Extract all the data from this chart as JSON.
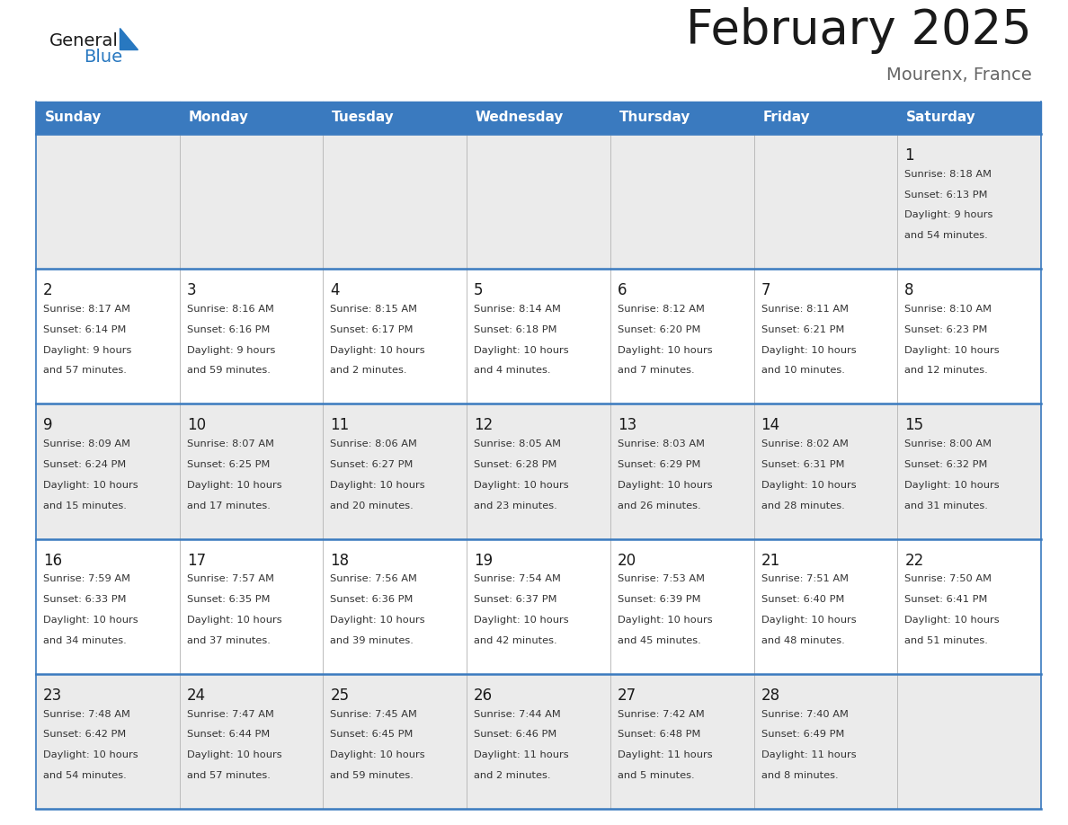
{
  "title": "February 2025",
  "subtitle": "Mourenx, France",
  "header_color": "#3a7abf",
  "header_text_color": "#ffffff",
  "cell_bg_gray": "#ebebeb",
  "cell_bg_white": "#ffffff",
  "title_color": "#1a1a1a",
  "subtitle_color": "#666666",
  "day_num_color": "#1a1a1a",
  "cell_text_color": "#333333",
  "border_color": "#3a7abf",
  "grid_line_color": "#aaaaaa",
  "days_of_week": [
    "Sunday",
    "Monday",
    "Tuesday",
    "Wednesday",
    "Thursday",
    "Friday",
    "Saturday"
  ],
  "logo_text1": "General",
  "logo_text2": "Blue",
  "logo_color1": "#1a1a1a",
  "logo_color2": "#2878c0",
  "logo_triangle_color": "#2878c0",
  "calendar_data": [
    [
      {
        "day": "",
        "sunrise": "",
        "sunset": "",
        "daylight": ""
      },
      {
        "day": "",
        "sunrise": "",
        "sunset": "",
        "daylight": ""
      },
      {
        "day": "",
        "sunrise": "",
        "sunset": "",
        "daylight": ""
      },
      {
        "day": "",
        "sunrise": "",
        "sunset": "",
        "daylight": ""
      },
      {
        "day": "",
        "sunrise": "",
        "sunset": "",
        "daylight": ""
      },
      {
        "day": "",
        "sunrise": "",
        "sunset": "",
        "daylight": ""
      },
      {
        "day": "1",
        "sunrise": "8:18 AM",
        "sunset": "6:13 PM",
        "daylight_line1": "Daylight: 9 hours",
        "daylight_line2": "and 54 minutes."
      }
    ],
    [
      {
        "day": "2",
        "sunrise": "8:17 AM",
        "sunset": "6:14 PM",
        "daylight_line1": "Daylight: 9 hours",
        "daylight_line2": "and 57 minutes."
      },
      {
        "day": "3",
        "sunrise": "8:16 AM",
        "sunset": "6:16 PM",
        "daylight_line1": "Daylight: 9 hours",
        "daylight_line2": "and 59 minutes."
      },
      {
        "day": "4",
        "sunrise": "8:15 AM",
        "sunset": "6:17 PM",
        "daylight_line1": "Daylight: 10 hours",
        "daylight_line2": "and 2 minutes."
      },
      {
        "day": "5",
        "sunrise": "8:14 AM",
        "sunset": "6:18 PM",
        "daylight_line1": "Daylight: 10 hours",
        "daylight_line2": "and 4 minutes."
      },
      {
        "day": "6",
        "sunrise": "8:12 AM",
        "sunset": "6:20 PM",
        "daylight_line1": "Daylight: 10 hours",
        "daylight_line2": "and 7 minutes."
      },
      {
        "day": "7",
        "sunrise": "8:11 AM",
        "sunset": "6:21 PM",
        "daylight_line1": "Daylight: 10 hours",
        "daylight_line2": "and 10 minutes."
      },
      {
        "day": "8",
        "sunrise": "8:10 AM",
        "sunset": "6:23 PM",
        "daylight_line1": "Daylight: 10 hours",
        "daylight_line2": "and 12 minutes."
      }
    ],
    [
      {
        "day": "9",
        "sunrise": "8:09 AM",
        "sunset": "6:24 PM",
        "daylight_line1": "Daylight: 10 hours",
        "daylight_line2": "and 15 minutes."
      },
      {
        "day": "10",
        "sunrise": "8:07 AM",
        "sunset": "6:25 PM",
        "daylight_line1": "Daylight: 10 hours",
        "daylight_line2": "and 17 minutes."
      },
      {
        "day": "11",
        "sunrise": "8:06 AM",
        "sunset": "6:27 PM",
        "daylight_line1": "Daylight: 10 hours",
        "daylight_line2": "and 20 minutes."
      },
      {
        "day": "12",
        "sunrise": "8:05 AM",
        "sunset": "6:28 PM",
        "daylight_line1": "Daylight: 10 hours",
        "daylight_line2": "and 23 minutes."
      },
      {
        "day": "13",
        "sunrise": "8:03 AM",
        "sunset": "6:29 PM",
        "daylight_line1": "Daylight: 10 hours",
        "daylight_line2": "and 26 minutes."
      },
      {
        "day": "14",
        "sunrise": "8:02 AM",
        "sunset": "6:31 PM",
        "daylight_line1": "Daylight: 10 hours",
        "daylight_line2": "and 28 minutes."
      },
      {
        "day": "15",
        "sunrise": "8:00 AM",
        "sunset": "6:32 PM",
        "daylight_line1": "Daylight: 10 hours",
        "daylight_line2": "and 31 minutes."
      }
    ],
    [
      {
        "day": "16",
        "sunrise": "7:59 AM",
        "sunset": "6:33 PM",
        "daylight_line1": "Daylight: 10 hours",
        "daylight_line2": "and 34 minutes."
      },
      {
        "day": "17",
        "sunrise": "7:57 AM",
        "sunset": "6:35 PM",
        "daylight_line1": "Daylight: 10 hours",
        "daylight_line2": "and 37 minutes."
      },
      {
        "day": "18",
        "sunrise": "7:56 AM",
        "sunset": "6:36 PM",
        "daylight_line1": "Daylight: 10 hours",
        "daylight_line2": "and 39 minutes."
      },
      {
        "day": "19",
        "sunrise": "7:54 AM",
        "sunset": "6:37 PM",
        "daylight_line1": "Daylight: 10 hours",
        "daylight_line2": "and 42 minutes."
      },
      {
        "day": "20",
        "sunrise": "7:53 AM",
        "sunset": "6:39 PM",
        "daylight_line1": "Daylight: 10 hours",
        "daylight_line2": "and 45 minutes."
      },
      {
        "day": "21",
        "sunrise": "7:51 AM",
        "sunset": "6:40 PM",
        "daylight_line1": "Daylight: 10 hours",
        "daylight_line2": "and 48 minutes."
      },
      {
        "day": "22",
        "sunrise": "7:50 AM",
        "sunset": "6:41 PM",
        "daylight_line1": "Daylight: 10 hours",
        "daylight_line2": "and 51 minutes."
      }
    ],
    [
      {
        "day": "23",
        "sunrise": "7:48 AM",
        "sunset": "6:42 PM",
        "daylight_line1": "Daylight: 10 hours",
        "daylight_line2": "and 54 minutes."
      },
      {
        "day": "24",
        "sunrise": "7:47 AM",
        "sunset": "6:44 PM",
        "daylight_line1": "Daylight: 10 hours",
        "daylight_line2": "and 57 minutes."
      },
      {
        "day": "25",
        "sunrise": "7:45 AM",
        "sunset": "6:45 PM",
        "daylight_line1": "Daylight: 10 hours",
        "daylight_line2": "and 59 minutes."
      },
      {
        "day": "26",
        "sunrise": "7:44 AM",
        "sunset": "6:46 PM",
        "daylight_line1": "Daylight: 11 hours",
        "daylight_line2": "and 2 minutes."
      },
      {
        "day": "27",
        "sunrise": "7:42 AM",
        "sunset": "6:48 PM",
        "daylight_line1": "Daylight: 11 hours",
        "daylight_line2": "and 5 minutes."
      },
      {
        "day": "28",
        "sunrise": "7:40 AM",
        "sunset": "6:49 PM",
        "daylight_line1": "Daylight: 11 hours",
        "daylight_line2": "and 8 minutes."
      },
      {
        "day": "",
        "sunrise": "",
        "sunset": "",
        "daylight_line1": "",
        "daylight_line2": ""
      }
    ]
  ]
}
